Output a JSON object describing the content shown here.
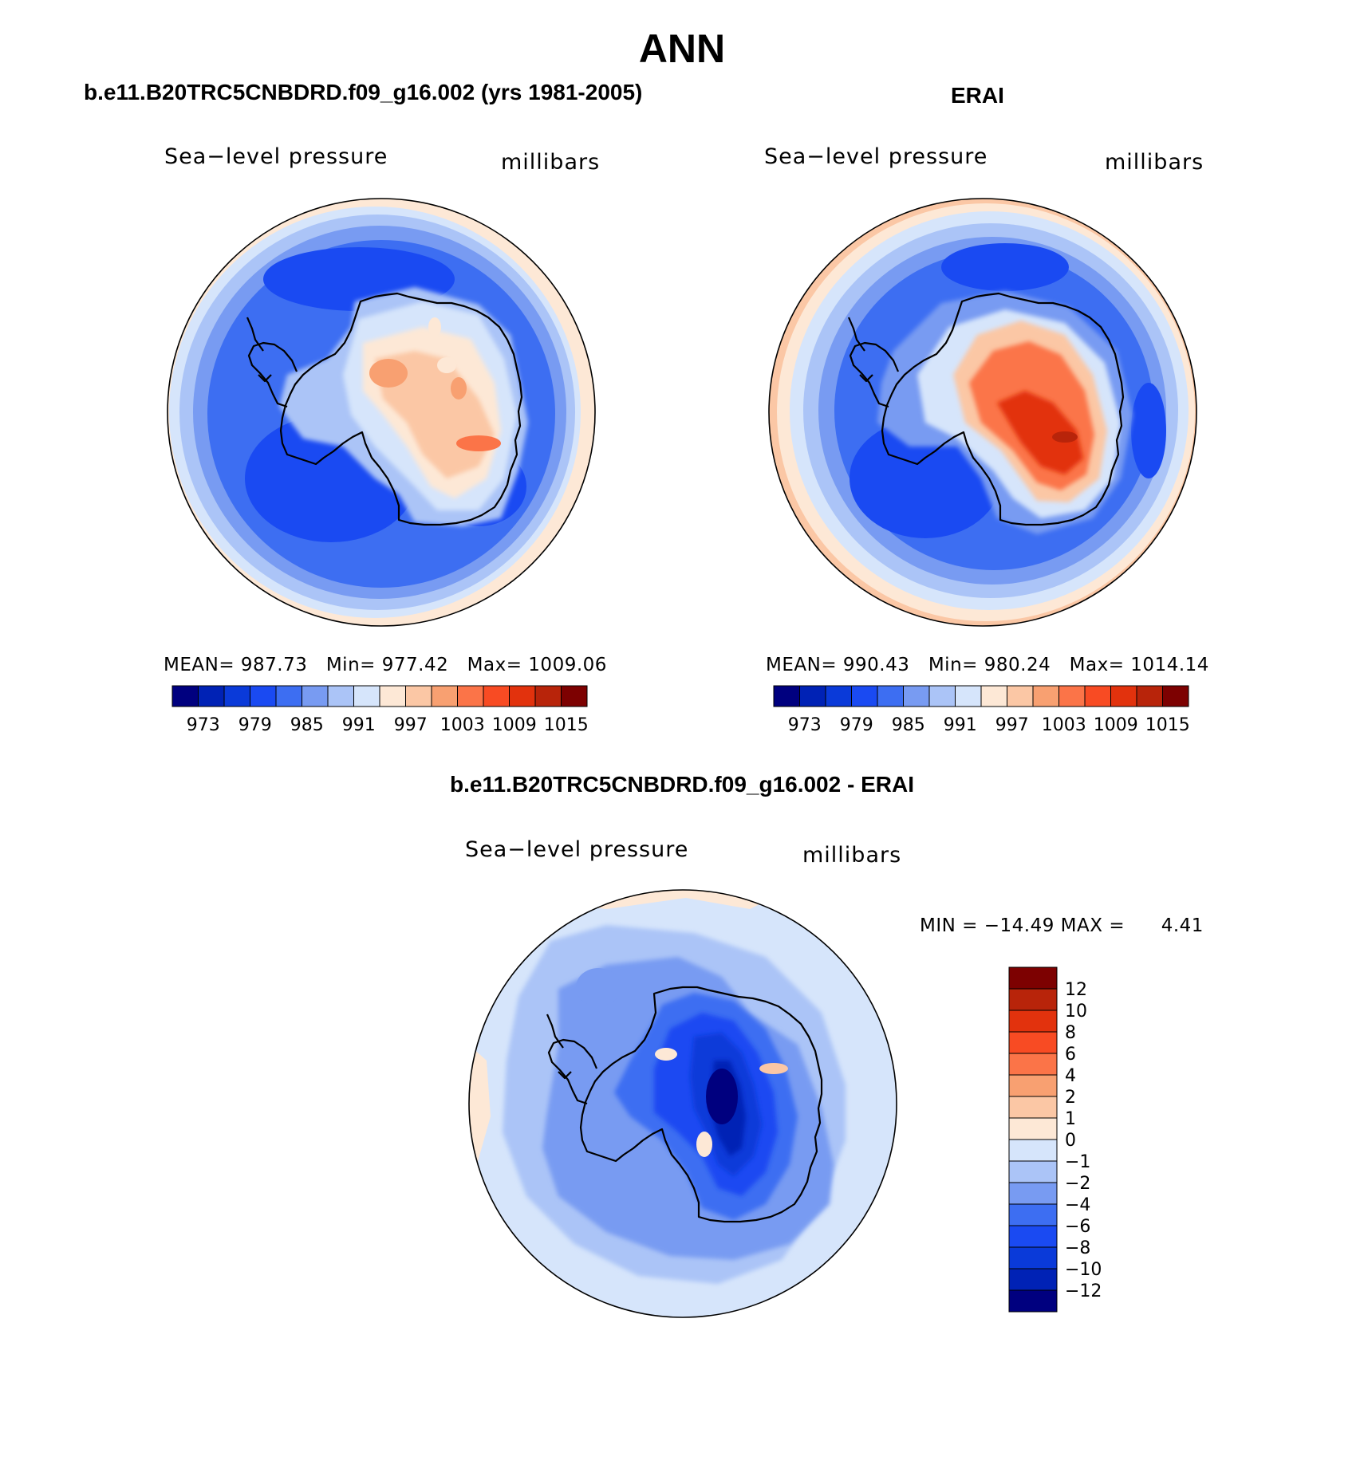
{
  "title": "ANN",
  "colors": {
    "scale_sym": [
      "#00007f",
      "#0022b5",
      "#0a3ad9",
      "#1a4af2",
      "#3d6ef2",
      "#789bf2",
      "#abc4f7",
      "#d6e5fb",
      "#fde8d6",
      "#fbc7a5",
      "#f8a071",
      "#fb7448",
      "#f84b23",
      "#e2320d",
      "#b8240a",
      "#7d0101"
    ],
    "scale_diff": [
      "#00007f",
      "#0022b5",
      "#0a3ad9",
      "#1a4af2",
      "#3d6ef2",
      "#789bf2",
      "#abc4f7",
      "#d6e5fb",
      "#fde8d6",
      "#fbc7a5",
      "#f8a071",
      "#fb7448",
      "#f84b23",
      "#e2320d",
      "#b8240a",
      "#7d0101"
    ],
    "coast": "#000000"
  },
  "panels": {
    "model": {
      "title": "b.e11.B20TRC5CNBDRD.f09_g16.002 (yrs 1981-2005)",
      "variable": "Sea−level pressure",
      "units": "millibars",
      "stats": {
        "mean_label": "MEAN=",
        "mean": "987.73",
        "min_label": "Min=",
        "min": "977.42",
        "max_label": "Max=",
        "max": "1009.06"
      },
      "colorbar_ticks": [
        "973",
        "979",
        "985",
        "991",
        "997",
        "1003",
        "1009",
        "1015"
      ]
    },
    "obs": {
      "title": "ERAI",
      "variable": "Sea−level pressure",
      "units": "millibars",
      "stats": {
        "mean_label": "MEAN=",
        "mean": "990.43",
        "min_label": "Min=",
        "min": "980.24",
        "max_label": "Max=",
        "max": "1014.14"
      },
      "colorbar_ticks": [
        "973",
        "979",
        "985",
        "991",
        "997",
        "1003",
        "1009",
        "1015"
      ]
    },
    "diff": {
      "title": "b.e11.B20TRC5CNBDRD.f09_g16.002 - ERAI",
      "variable": "Sea−level pressure",
      "units": "millibars",
      "stats": {
        "min_label": "MIN =",
        "min": "−14.49",
        "max_label": "MAX =",
        "max": "4.41"
      },
      "colorbar_ticks": [
        "12",
        "10",
        "8",
        "6",
        "4",
        "2",
        "1",
        "0",
        "−1",
        "−2",
        "−4",
        "−6",
        "−8",
        "−10",
        "−12"
      ]
    }
  }
}
